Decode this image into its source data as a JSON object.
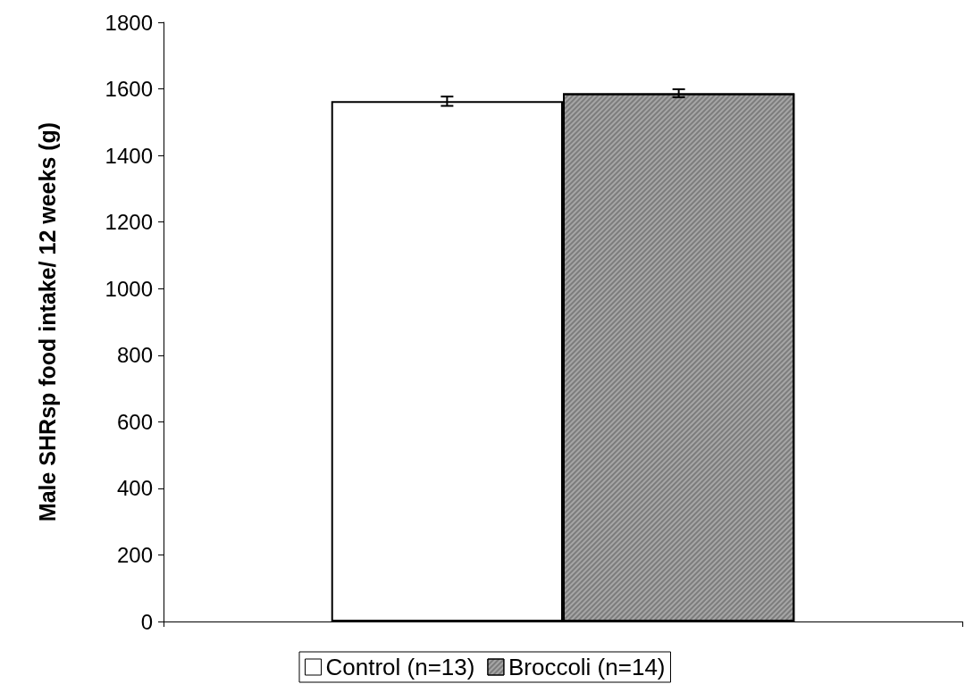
{
  "chart_data": {
    "type": "bar",
    "ylabel": "Male SHRsp food intake/ 12 weeks (g)",
    "categories": [
      null
    ],
    "series": [
      {
        "name": "Control (n=13)",
        "color": "#ffffff",
        "values": [
          1563
        ],
        "errors": [
          14
        ]
      },
      {
        "name": "Broccoli (n=14)",
        "color": "#a6a6a6",
        "values": [
          1587
        ],
        "errors": [
          12
        ]
      }
    ],
    "ylim": [
      0,
      1800
    ],
    "yticks": [
      0,
      200,
      400,
      600,
      800,
      1000,
      1200,
      1400,
      1600,
      1800
    ],
    "grid": false,
    "legend": "bottom"
  }
}
